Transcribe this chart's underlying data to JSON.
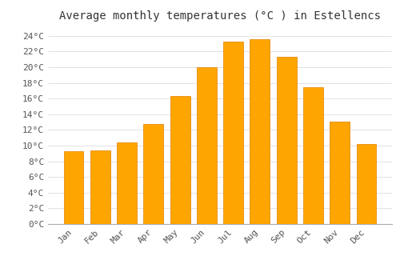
{
  "title": "Average monthly temperatures (°C ) in Estellencs",
  "months": [
    "Jan",
    "Feb",
    "Mar",
    "Apr",
    "May",
    "Jun",
    "Jul",
    "Aug",
    "Sep",
    "Oct",
    "Nov",
    "Dec"
  ],
  "temperatures": [
    9.3,
    9.4,
    10.4,
    12.8,
    16.3,
    20.0,
    23.3,
    23.6,
    21.3,
    17.4,
    13.1,
    10.2
  ],
  "bar_color": "#FFA500",
  "bar_edge_color": "#E08000",
  "background_color": "#FFFFFF",
  "grid_color": "#DDDDDD",
  "ylim": [
    0,
    25
  ],
  "ytick_step": 2,
  "title_fontsize": 10,
  "tick_fontsize": 8,
  "font_family": "monospace"
}
